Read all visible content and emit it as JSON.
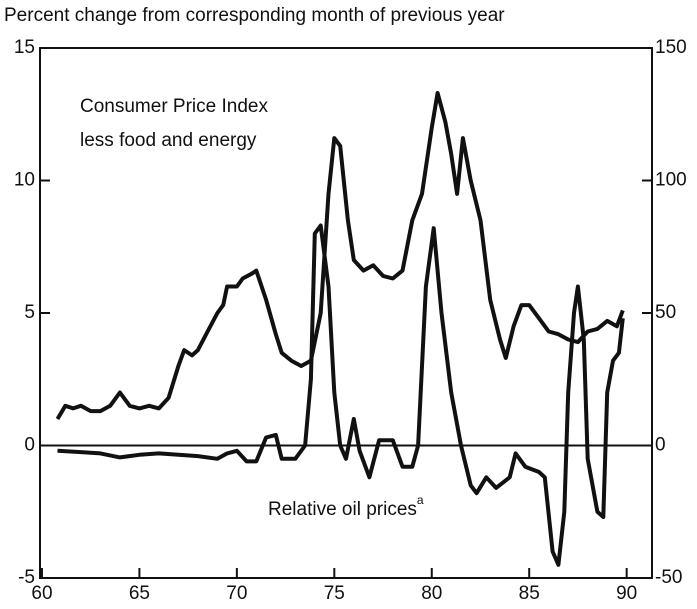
{
  "chart_data": {
    "type": "line",
    "title": "Percent change from corresponding month of previous year",
    "annotations": [
      {
        "text": "Consumer Price Index"
      },
      {
        "text": "less food and energy"
      },
      {
        "text": "Relative oil prices",
        "superscript": "a"
      }
    ],
    "xlim": [
      59.9,
      91.3
    ],
    "xticks": [
      60,
      65,
      70,
      75,
      80,
      85,
      90
    ],
    "ylim": [
      -5,
      15
    ],
    "yticks": [
      -5,
      0,
      5,
      10,
      15
    ],
    "y2lim": [
      -50,
      150
    ],
    "y2ticks": [
      -50,
      0,
      50,
      100,
      150
    ],
    "color": "#111111",
    "series": [
      {
        "name": "Consumer Price Index less food and energy",
        "color": "#111111",
        "x": [
          60.8,
          61.2,
          61.6,
          62,
          62.5,
          63,
          63.5,
          64,
          64.5,
          65,
          65.5,
          66,
          66.5,
          67,
          67.3,
          67.7,
          68,
          68.5,
          69,
          69.3,
          69.5,
          70,
          70.3,
          70.8,
          71,
          71.5,
          72,
          72.3,
          72.8,
          73.3,
          73.8,
          74.3,
          74.7,
          75,
          75.3,
          75.7,
          76,
          76.5,
          77,
          77.5,
          78,
          78.5,
          79,
          79.5,
          80,
          80.3,
          80.7,
          81,
          81.3,
          81.6,
          82,
          82.5,
          83,
          83.5,
          83.8,
          84.2,
          84.6,
          85,
          85.5,
          86,
          86.5,
          87,
          87.5,
          88,
          88.5,
          89,
          89.5,
          89.8
        ],
        "values": [
          1.0,
          1.5,
          1.4,
          1.5,
          1.3,
          1.3,
          1.5,
          2.0,
          1.5,
          1.4,
          1.5,
          1.4,
          1.8,
          3.0,
          3.6,
          3.4,
          3.6,
          4.3,
          5.0,
          5.3,
          6.0,
          6.0,
          6.3,
          6.5,
          6.6,
          5.5,
          4.2,
          3.5,
          3.2,
          3.0,
          3.2,
          5.0,
          9.5,
          11.6,
          11.3,
          8.5,
          7.0,
          6.6,
          6.8,
          6.4,
          6.3,
          6.6,
          8.5,
          9.5,
          12.0,
          13.3,
          12.2,
          11.0,
          9.5,
          11.6,
          10.0,
          8.5,
          5.5,
          4.0,
          3.3,
          4.5,
          5.3,
          5.3,
          4.8,
          4.3,
          4.2,
          4.0,
          3.9,
          4.3,
          4.4,
          4.7,
          4.5,
          5.1
        ]
      },
      {
        "name": "Relative oil prices",
        "color": "#111111",
        "axis": "y2",
        "x": [
          60.8,
          62,
          63,
          64,
          65,
          66,
          67,
          68,
          69,
          69.5,
          70,
          70.5,
          71,
          71.5,
          72,
          72.3,
          73,
          73.5,
          73.8,
          74,
          74.3,
          74.7,
          75,
          75.3,
          75.6,
          76,
          76.3,
          76.8,
          77.3,
          78,
          78.5,
          79,
          79.3,
          79.7,
          80.1,
          80.5,
          81,
          81.5,
          82,
          82.3,
          82.8,
          83.3,
          84,
          84.3,
          84.8,
          85.5,
          85.8,
          86.2,
          86.5,
          86.8,
          87,
          87.3,
          87.5,
          87.8,
          88,
          88.5,
          88.8,
          89,
          89.3,
          89.6,
          89.8
        ],
        "values": [
          -2,
          -2.5,
          -3,
          -4.5,
          -3.5,
          -3,
          -3.5,
          -4,
          -5,
          -3,
          -2,
          -6,
          -6,
          3,
          4,
          -5,
          -5,
          0,
          25,
          80,
          83,
          60,
          20,
          0,
          -5,
          10,
          -2,
          -12,
          2,
          2,
          -8,
          -8,
          0,
          60,
          82,
          50,
          20,
          0,
          -15,
          -18,
          -12,
          -16,
          -12,
          -3,
          -8,
          -10,
          -12,
          -40,
          -45,
          -25,
          20,
          50,
          60,
          40,
          -5,
          -25,
          -27,
          20,
          32,
          35,
          48
        ]
      }
    ]
  }
}
